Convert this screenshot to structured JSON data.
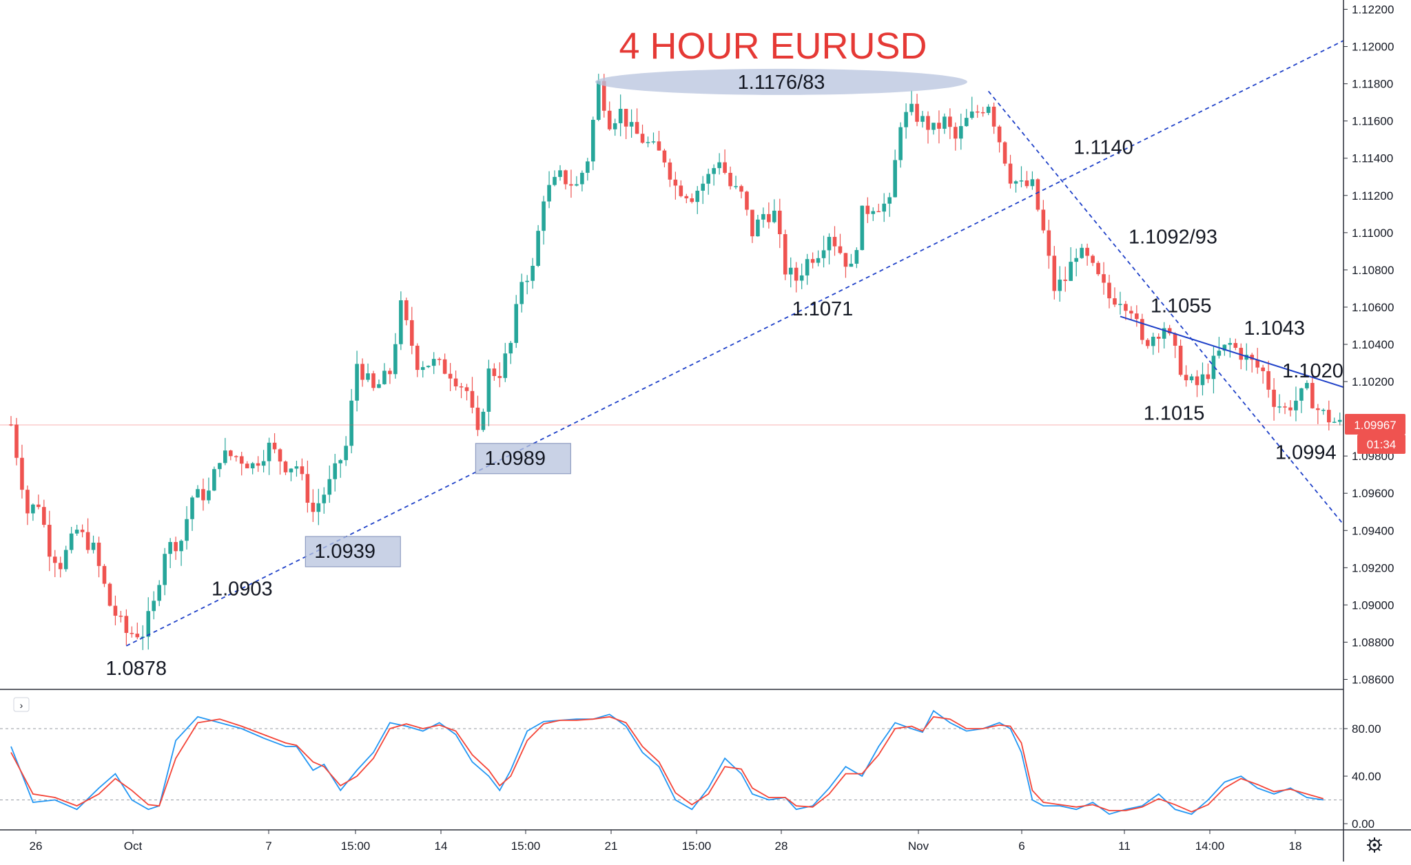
{
  "chart_data": {
    "type": "candlestick",
    "title": "4 HOUR EURUSD",
    "colors": {
      "up": "#26a69a",
      "down": "#ef5350",
      "background": "#ffffff",
      "title": "#e53935",
      "trendline": "#1e40c8",
      "highlight_box": "#b7c3de",
      "stoch_k": "#2196f3",
      "stoch_d": "#f44336",
      "last_price": "#ef5350"
    },
    "price_axis": {
      "ylim": [
        1.0855,
        1.1225
      ],
      "ticks": [
        "1.12200",
        "1.12000",
        "1.11800",
        "1.11600",
        "1.11400",
        "1.11200",
        "1.11000",
        "1.10800",
        "1.10600",
        "1.10400",
        "1.10200",
        "1.09800",
        "1.09600",
        "1.09400",
        "1.09200",
        "1.09000",
        "1.08800",
        "1.08600"
      ],
      "last_price": "1.09967",
      "countdown": "01:34"
    },
    "time_axis": {
      "labels": [
        "26",
        "Oct",
        "7",
        "15:00",
        "14",
        "15:00",
        "21",
        "15:00",
        "28",
        "Nov",
        "6",
        "11",
        "14:00",
        "18"
      ]
    },
    "price_path": [
      [
        0,
        1.0997
      ],
      [
        3,
        1.095
      ],
      [
        5,
        1.0955
      ],
      [
        7,
        1.093
      ],
      [
        9,
        1.0922
      ],
      [
        12,
        1.094
      ],
      [
        15,
        1.093
      ],
      [
        18,
        1.09
      ],
      [
        21,
        1.0885
      ],
      [
        24,
        1.0885
      ],
      [
        26,
        1.09
      ],
      [
        28,
        1.093
      ],
      [
        31,
        1.0935
      ],
      [
        33,
        1.0958
      ],
      [
        36,
        1.096
      ],
      [
        38,
        1.098
      ],
      [
        41,
        1.098
      ],
      [
        44,
        1.0975
      ],
      [
        47,
        1.0985
      ],
      [
        50,
        1.0975
      ],
      [
        52,
        1.0975
      ],
      [
        55,
        1.095
      ],
      [
        58,
        1.0965
      ],
      [
        61,
        1.0985
      ],
      [
        63,
        1.103
      ],
      [
        66,
        1.1015
      ],
      [
        69,
        1.1025
      ],
      [
        71,
        1.106
      ],
      [
        74,
        1.103
      ],
      [
        77,
        1.103
      ],
      [
        80,
        1.1025
      ],
      [
        83,
        1.1015
      ],
      [
        85,
        1.099
      ],
      [
        87,
        1.1025
      ],
      [
        89,
        1.1025
      ],
      [
        91,
        1.104
      ],
      [
        93,
        1.1075
      ],
      [
        95,
        1.108
      ],
      [
        97,
        1.112
      ],
      [
        100,
        1.113
      ],
      [
        103,
        1.1125
      ],
      [
        105,
        1.114
      ],
      [
        107,
        1.118
      ],
      [
        109,
        1.116
      ],
      [
        111,
        1.1165
      ],
      [
        113,
        1.1155
      ],
      [
        115,
        1.115
      ],
      [
        117,
        1.1145
      ],
      [
        119,
        1.114
      ],
      [
        121,
        1.1125
      ],
      [
        124,
        1.112
      ],
      [
        127,
        1.113
      ],
      [
        129,
        1.114
      ],
      [
        131,
        1.1125
      ],
      [
        133,
        1.112
      ],
      [
        135,
        1.11
      ],
      [
        137,
        1.111
      ],
      [
        139,
        1.111
      ],
      [
        141,
        1.108
      ],
      [
        143,
        1.1075
      ],
      [
        145,
        1.1085
      ],
      [
        147,
        1.109
      ],
      [
        149,
        1.11
      ],
      [
        151,
        1.109
      ],
      [
        153,
        1.108
      ],
      [
        155,
        1.111
      ],
      [
        157,
        1.1115
      ],
      [
        160,
        1.1115
      ],
      [
        162,
        1.116
      ],
      [
        164,
        1.1165
      ],
      [
        166,
        1.116
      ],
      [
        168,
        1.1155
      ],
      [
        170,
        1.116
      ],
      [
        172,
        1.115
      ],
      [
        174,
        1.116
      ],
      [
        176,
        1.1165
      ],
      [
        178,
        1.117
      ],
      [
        180,
        1.115
      ],
      [
        182,
        1.113
      ],
      [
        184,
        1.1125
      ],
      [
        186,
        1.1125
      ],
      [
        188,
        1.11
      ],
      [
        190,
        1.107
      ],
      [
        192,
        1.1075
      ],
      [
        194,
        1.109
      ],
      [
        196,
        1.1085
      ],
      [
        198,
        1.1075
      ],
      [
        200,
        1.1065
      ],
      [
        202,
        1.1065
      ],
      [
        204,
        1.106
      ],
      [
        206,
        1.104
      ],
      [
        208,
        1.1045
      ],
      [
        210,
        1.105
      ],
      [
        212,
        1.1035
      ],
      [
        214,
        1.102
      ],
      [
        216,
        1.1018
      ],
      [
        218,
        1.1025
      ],
      [
        220,
        1.1035
      ],
      [
        222,
        1.104
      ],
      [
        224,
        1.1035
      ],
      [
        226,
        1.103
      ],
      [
        228,
        1.1025
      ],
      [
        230,
        1.101
      ],
      [
        232,
        1.1005
      ],
      [
        234,
        1.101
      ],
      [
        236,
        1.1015
      ],
      [
        238,
        1.1005
      ],
      [
        240,
        1.1
      ],
      [
        242,
        1.0997
      ]
    ],
    "trendlines": [
      {
        "name": "rising-support",
        "style": "dashed",
        "from": [
          21,
          1.0878
        ],
        "to": [
          263,
          1.1233
        ]
      },
      {
        "name": "falling-channel-upper",
        "style": "dashed",
        "from": [
          178,
          1.1176
        ],
        "to": [
          263,
          1.087
        ]
      },
      {
        "name": "falling-resistance",
        "style": "solid",
        "from": [
          202,
          1.1055
        ],
        "to": [
          263,
          1.0998
        ]
      }
    ],
    "annotations": [
      {
        "text": "1.0878",
        "x": 21,
        "y": 1.0878,
        "pos": "below"
      },
      {
        "text": "1.0903",
        "x": 34,
        "y": 1.0903,
        "pos": "right"
      },
      {
        "text": "1.0939",
        "x": 58,
        "y": 1.0939,
        "pos": "box"
      },
      {
        "text": "1.0989",
        "x": 89,
        "y": 1.0989,
        "pos": "box"
      },
      {
        "text": "1.1176/83",
        "x": 143,
        "y": 1.1181,
        "pos": "ellipse"
      },
      {
        "text": "1.1071",
        "x": 146,
        "y": 1.1071,
        "pos": "below"
      },
      {
        "text": "1.1140",
        "x": 191,
        "y": 1.114,
        "pos": "right"
      },
      {
        "text": "1.1092/93",
        "x": 201,
        "y": 1.1092,
        "pos": "right"
      },
      {
        "text": "1.1055",
        "x": 205,
        "y": 1.1055,
        "pos": "right"
      },
      {
        "text": "1.1043",
        "x": 222,
        "y": 1.1043,
        "pos": "right"
      },
      {
        "text": "1.1020",
        "x": 229,
        "y": 1.102,
        "pos": "right"
      },
      {
        "text": "1.1015",
        "x": 210,
        "y": 1.1015,
        "pos": "below"
      },
      {
        "text": "1.0994",
        "x": 234,
        "y": 1.0994,
        "pos": "below"
      }
    ],
    "oscillator": {
      "type": "stochastic",
      "ylim": [
        0,
        100
      ],
      "ticks": [
        "80.00",
        "40.00",
        "0.00"
      ],
      "levels": [
        80,
        20
      ],
      "k_path": [
        [
          0,
          65
        ],
        [
          4,
          18
        ],
        [
          8,
          20
        ],
        [
          12,
          12
        ],
        [
          16,
          30
        ],
        [
          19,
          42
        ],
        [
          22,
          20
        ],
        [
          25,
          12
        ],
        [
          27,
          15
        ],
        [
          30,
          70
        ],
        [
          34,
          90
        ],
        [
          38,
          85
        ],
        [
          42,
          80
        ],
        [
          46,
          72
        ],
        [
          50,
          65
        ],
        [
          52,
          65
        ],
        [
          55,
          45
        ],
        [
          57,
          50
        ],
        [
          60,
          28
        ],
        [
          63,
          45
        ],
        [
          66,
          60
        ],
        [
          69,
          85
        ],
        [
          72,
          82
        ],
        [
          75,
          78
        ],
        [
          78,
          85
        ],
        [
          81,
          75
        ],
        [
          84,
          52
        ],
        [
          87,
          40
        ],
        [
          89,
          28
        ],
        [
          91,
          45
        ],
        [
          94,
          78
        ],
        [
          97,
          86
        ],
        [
          100,
          87
        ],
        [
          103,
          88
        ],
        [
          106,
          88
        ],
        [
          109,
          92
        ],
        [
          112,
          82
        ],
        [
          115,
          60
        ],
        [
          118,
          48
        ],
        [
          121,
          20
        ],
        [
          124,
          12
        ],
        [
          127,
          30
        ],
        [
          130,
          55
        ],
        [
          133,
          42
        ],
        [
          135,
          25
        ],
        [
          138,
          20
        ],
        [
          141,
          22
        ],
        [
          143,
          12
        ],
        [
          146,
          15
        ],
        [
          149,
          30
        ],
        [
          152,
          48
        ],
        [
          155,
          40
        ],
        [
          158,
          65
        ],
        [
          161,
          85
        ],
        [
          164,
          80
        ],
        [
          166,
          77
        ],
        [
          168,
          95
        ],
        [
          171,
          85
        ],
        [
          174,
          78
        ],
        [
          177,
          80
        ],
        [
          180,
          85
        ],
        [
          182,
          80
        ],
        [
          184,
          60
        ],
        [
          186,
          20
        ],
        [
          188,
          15
        ],
        [
          191,
          15
        ],
        [
          194,
          12
        ],
        [
          197,
          18
        ],
        [
          200,
          8
        ],
        [
          203,
          12
        ],
        [
          206,
          15
        ],
        [
          209,
          25
        ],
        [
          212,
          12
        ],
        [
          215,
          8
        ],
        [
          218,
          20
        ],
        [
          221,
          35
        ],
        [
          224,
          40
        ],
        [
          227,
          30
        ],
        [
          230,
          25
        ],
        [
          233,
          30
        ],
        [
          236,
          22
        ],
        [
          239,
          20
        ]
      ],
      "d_path": [
        [
          0,
          60
        ],
        [
          4,
          25
        ],
        [
          8,
          22
        ],
        [
          12,
          15
        ],
        [
          16,
          25
        ],
        [
          19,
          38
        ],
        [
          22,
          28
        ],
        [
          25,
          16
        ],
        [
          27,
          15
        ],
        [
          30,
          55
        ],
        [
          34,
          85
        ],
        [
          38,
          88
        ],
        [
          42,
          82
        ],
        [
          46,
          75
        ],
        [
          50,
          68
        ],
        [
          52,
          66
        ],
        [
          55,
          52
        ],
        [
          57,
          48
        ],
        [
          60,
          32
        ],
        [
          63,
          40
        ],
        [
          66,
          55
        ],
        [
          69,
          80
        ],
        [
          72,
          84
        ],
        [
          75,
          80
        ],
        [
          78,
          83
        ],
        [
          81,
          78
        ],
        [
          84,
          58
        ],
        [
          87,
          45
        ],
        [
          89,
          32
        ],
        [
          91,
          40
        ],
        [
          94,
          70
        ],
        [
          97,
          84
        ],
        [
          100,
          87
        ],
        [
          103,
          87
        ],
        [
          106,
          88
        ],
        [
          109,
          90
        ],
        [
          112,
          85
        ],
        [
          115,
          65
        ],
        [
          118,
          52
        ],
        [
          121,
          26
        ],
        [
          124,
          16
        ],
        [
          127,
          25
        ],
        [
          130,
          48
        ],
        [
          133,
          46
        ],
        [
          135,
          30
        ],
        [
          138,
          22
        ],
        [
          141,
          22
        ],
        [
          143,
          15
        ],
        [
          146,
          14
        ],
        [
          149,
          25
        ],
        [
          152,
          42
        ],
        [
          155,
          42
        ],
        [
          158,
          58
        ],
        [
          161,
          80
        ],
        [
          164,
          82
        ],
        [
          166,
          78
        ],
        [
          168,
          90
        ],
        [
          171,
          88
        ],
        [
          174,
          80
        ],
        [
          177,
          80
        ],
        [
          180,
          83
        ],
        [
          182,
          82
        ],
        [
          184,
          68
        ],
        [
          186,
          28
        ],
        [
          188,
          18
        ],
        [
          191,
          16
        ],
        [
          194,
          14
        ],
        [
          197,
          16
        ],
        [
          200,
          11
        ],
        [
          203,
          11
        ],
        [
          206,
          14
        ],
        [
          209,
          21
        ],
        [
          212,
          16
        ],
        [
          215,
          10
        ],
        [
          218,
          16
        ],
        [
          221,
          30
        ],
        [
          224,
          38
        ],
        [
          227,
          33
        ],
        [
          230,
          27
        ],
        [
          233,
          29
        ],
        [
          236,
          25
        ],
        [
          239,
          21
        ]
      ]
    }
  }
}
